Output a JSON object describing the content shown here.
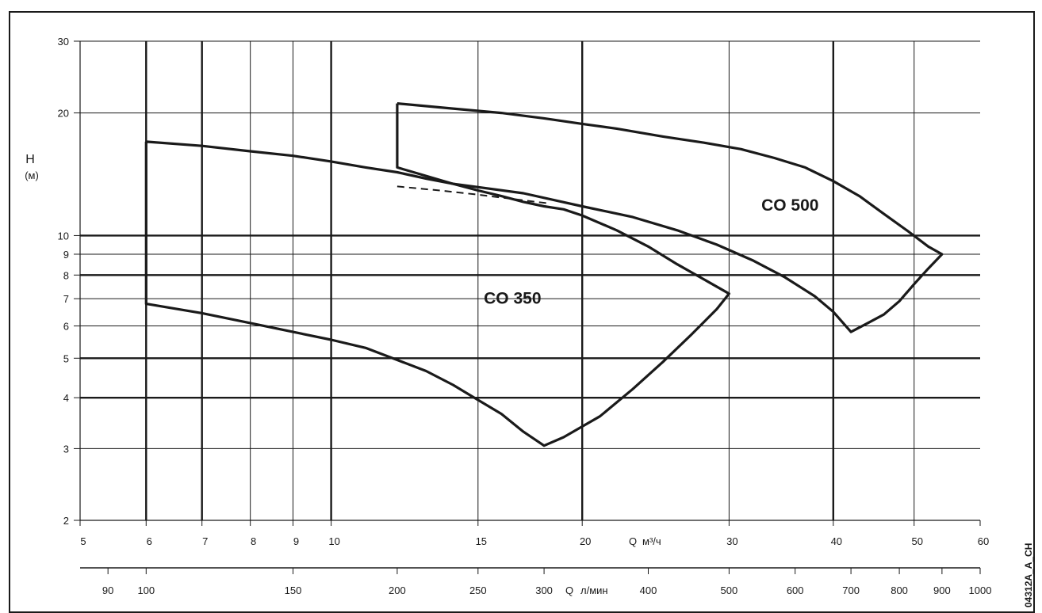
{
  "chart_data": {
    "type": "line",
    "title": "",
    "ylabel": "H",
    "ylabel_unit": "(м)",
    "xlabel": "Q",
    "xlabel_unit": "м³/ч",
    "x2label": "Q",
    "x2label_unit": "л/мин",
    "x_scale": "log",
    "y_scale": "log",
    "xlim": [
      5,
      60
    ],
    "ylim": [
      2,
      30
    ],
    "x2lim": [
      83.33,
      1000
    ],
    "x_ticks": [
      5,
      6,
      7,
      8,
      9,
      10,
      15,
      20,
      30,
      40,
      50,
      60
    ],
    "x_tick_labels": [
      "5",
      "6",
      "7",
      "8",
      "9",
      "10",
      "15",
      "20",
      "30",
      "40",
      "50",
      "60"
    ],
    "x_major_gridlines": [
      6,
      7,
      10,
      20,
      40
    ],
    "x_minor_gridlines": [
      8,
      9,
      15,
      30,
      50
    ],
    "y_ticks": [
      2,
      3,
      4,
      5,
      6,
      7,
      8,
      9,
      10,
      20,
      30
    ],
    "y_tick_labels": [
      "2",
      "3",
      "4",
      "5",
      "6",
      "7",
      "8",
      "9",
      "10",
      "20",
      "30"
    ],
    "y_major_gridlines": [
      4,
      5,
      8,
      10
    ],
    "y_minor_gridlines": [
      3,
      6,
      7,
      9,
      20,
      30
    ],
    "x2_ticks": [
      90,
      100,
      150,
      200,
      250,
      300,
      400,
      500,
      600,
      700,
      800,
      900,
      1000
    ],
    "x2_tick_labels": [
      "90",
      "100",
      "150",
      "200",
      "250",
      "300",
      "400",
      "500",
      "600",
      "700",
      "800",
      "900",
      "1000"
    ],
    "series": [
      {
        "name": "CO 350",
        "label_at": [
          16.5,
          6.8
        ],
        "x": [
          6,
          7,
          8,
          9,
          10,
          11,
          12,
          13,
          14,
          15,
          16,
          17,
          18,
          19,
          20,
          22,
          24,
          26,
          28,
          30,
          29,
          27,
          25,
          23,
          21,
          20,
          19,
          18,
          17,
          16,
          15,
          14,
          13,
          12,
          11,
          10,
          9,
          8,
          7,
          6,
          6
        ],
        "y": [
          17.0,
          16.6,
          16.1,
          15.7,
          15.2,
          14.7,
          14.3,
          13.8,
          13.4,
          12.9,
          12.5,
          12.1,
          11.8,
          11.6,
          11.2,
          10.3,
          9.4,
          8.5,
          7.8,
          7.2,
          6.6,
          5.7,
          4.9,
          4.2,
          3.6,
          3.4,
          3.2,
          3.05,
          3.3,
          3.65,
          3.95,
          4.3,
          4.65,
          4.95,
          5.3,
          5.55,
          5.8,
          6.1,
          6.45,
          6.8,
          17.0
        ]
      },
      {
        "name": "CO 500",
        "label_at": [
          35.5,
          11.5
        ],
        "x": [
          12,
          14,
          16,
          18,
          20,
          22,
          25,
          28,
          31,
          34,
          37,
          40,
          43,
          46,
          49,
          52,
          54,
          52,
          50,
          48,
          46,
          44,
          42,
          40,
          38,
          35,
          32,
          29,
          26,
          23,
          20,
          17,
          14,
          12,
          12
        ],
        "y": [
          21.1,
          20.5,
          20.0,
          19.4,
          18.8,
          18.3,
          17.5,
          16.9,
          16.3,
          15.5,
          14.7,
          13.6,
          12.5,
          11.3,
          10.3,
          9.4,
          9.0,
          8.3,
          7.6,
          6.9,
          6.4,
          6.1,
          5.8,
          6.5,
          7.1,
          7.9,
          8.7,
          9.5,
          10.3,
          11.1,
          11.8,
          12.7,
          13.4,
          14.7,
          21.1
        ]
      },
      {
        "name": "",
        "style": "dashed",
        "x": [
          12,
          13.5,
          15,
          16.5,
          18.2
        ],
        "y": [
          13.2,
          12.9,
          12.6,
          12.3,
          12.0
        ]
      }
    ],
    "annotations": [
      "CO 350",
      "CO 500"
    ],
    "corner_code": "04312A_A_CH",
    "grid": true,
    "legend": "none"
  }
}
